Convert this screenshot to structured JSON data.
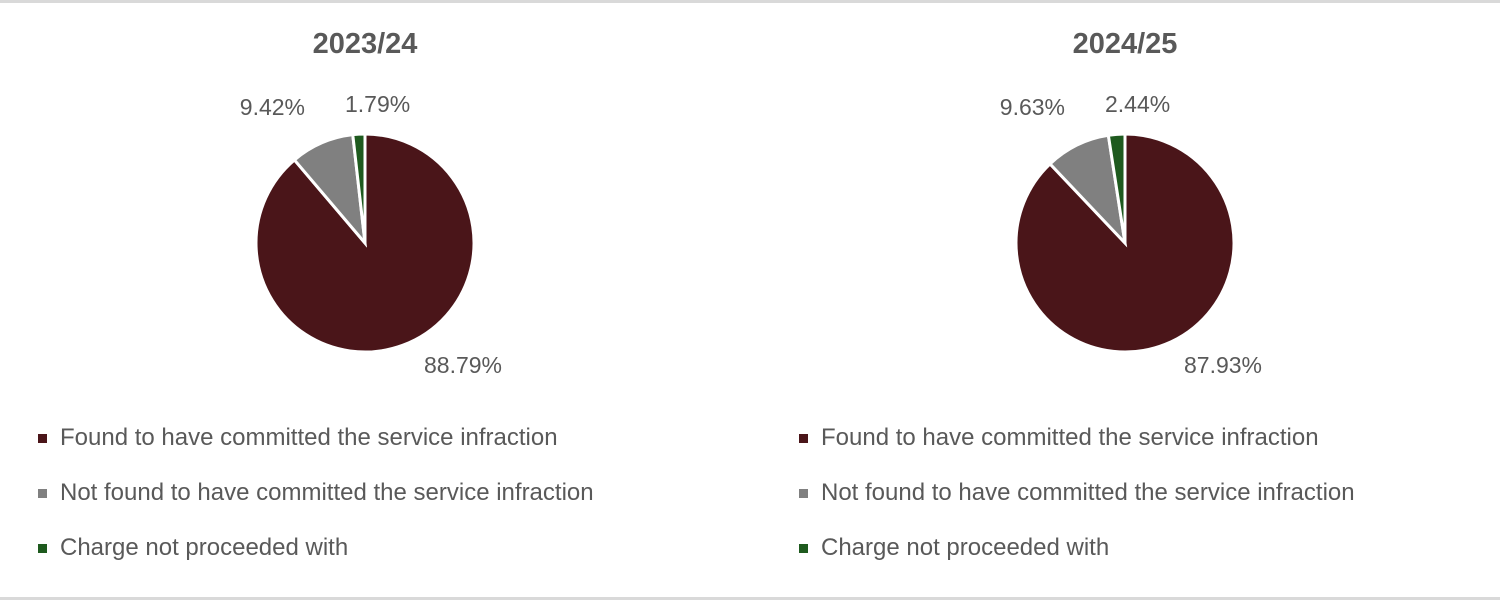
{
  "colors": {
    "found": "#4a1519",
    "not_found": "#808080",
    "not_proceeded": "#1e5a1e"
  },
  "chart_data": [
    {
      "type": "pie",
      "title": "2023/24",
      "categories": [
        "Found to have committed the service infraction",
        "Not found to have committed the service infraction",
        "Charge not proceeded with"
      ],
      "values": [
        88.79,
        9.42,
        1.79
      ],
      "data_labels": [
        "88.79%",
        "9.42%",
        "1.79%"
      ],
      "legend_position": "bottom"
    },
    {
      "type": "pie",
      "title": "2024/25",
      "categories": [
        "Found to have committed the service infraction",
        "Not found to have committed the service infraction",
        "Charge not proceeded with"
      ],
      "values": [
        87.93,
        9.63,
        2.44
      ],
      "data_labels": [
        "87.93%",
        "9.63%",
        "2.44%"
      ],
      "legend_position": "bottom"
    }
  ]
}
